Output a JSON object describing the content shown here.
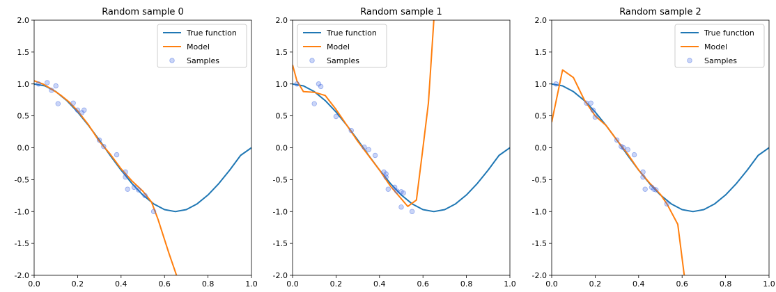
{
  "chart_data": [
    {
      "type": "line",
      "title": "Random sample 0",
      "xlabel": "",
      "ylabel": "",
      "xlim": [
        0.0,
        1.0
      ],
      "ylim": [
        -2.0,
        2.0
      ],
      "xticks": [
        "0.0",
        "0.2",
        "0.4",
        "0.6",
        "0.8",
        "1.0"
      ],
      "yticks": [
        "2.0",
        "1.5",
        "1.0",
        "0.5",
        "0.0",
        "-0.5",
        "-1.0",
        "-1.5",
        "-2.0"
      ],
      "grid": false,
      "legend": "top-right",
      "colors": {
        "true_function": "#1f77b4",
        "model": "#ff7f0e",
        "samples": "#4169e1"
      },
      "series": [
        {
          "name": "True function",
          "kind": "line",
          "x": [
            0,
            0.05,
            0.1,
            0.15,
            0.2,
            0.25,
            0.3,
            0.35,
            0.4,
            0.45,
            0.5,
            0.55,
            0.6,
            0.65,
            0.7,
            0.75,
            0.8,
            0.85,
            0.9,
            0.95,
            1.0
          ],
          "y": [
            1.0,
            0.97,
            0.88,
            0.74,
            0.56,
            0.35,
            0.12,
            -0.12,
            -0.35,
            -0.56,
            -0.74,
            -0.88,
            -0.97,
            -1.0,
            -0.97,
            -0.88,
            -0.74,
            -0.56,
            -0.35,
            -0.12,
            0.0
          ]
        },
        {
          "name": "Model",
          "kind": "line",
          "x": [
            0.0,
            0.04,
            0.08,
            0.12,
            0.16,
            0.2,
            0.25,
            0.3,
            0.35,
            0.4,
            0.45,
            0.5,
            0.54,
            0.57,
            0.62,
            0.655
          ],
          "y": [
            1.05,
            1.0,
            0.92,
            0.83,
            0.72,
            0.58,
            0.36,
            0.1,
            -0.1,
            -0.33,
            -0.52,
            -0.68,
            -0.85,
            -1.12,
            -1.65,
            -2.0
          ]
        },
        {
          "name": "Samples",
          "kind": "scatter",
          "x": [
            0.02,
            0.06,
            0.08,
            0.1,
            0.11,
            0.18,
            0.2,
            0.22,
            0.23,
            0.3,
            0.32,
            0.38,
            0.42,
            0.42,
            0.43,
            0.46,
            0.48,
            0.51,
            0.55
          ],
          "y": [
            1.0,
            1.02,
            0.9,
            0.97,
            0.69,
            0.7,
            0.59,
            0.55,
            0.59,
            0.12,
            0.02,
            -0.11,
            -0.38,
            -0.46,
            -0.65,
            -0.62,
            -0.66,
            -0.75,
            -1.0
          ]
        }
      ]
    },
    {
      "type": "line",
      "title": "Random sample 1",
      "xlabel": "",
      "ylabel": "",
      "xlim": [
        0.0,
        1.0
      ],
      "ylim": [
        -2.0,
        2.0
      ],
      "xticks": [
        "0.0",
        "0.2",
        "0.4",
        "0.6",
        "0.8",
        "1.0"
      ],
      "yticks": [
        "2.0",
        "1.5",
        "1.0",
        "0.5",
        "0.0",
        "-0.5",
        "-1.0",
        "-1.5",
        "-2.0"
      ],
      "grid": false,
      "legend": "top-left",
      "colors": {
        "true_function": "#1f77b4",
        "model": "#ff7f0e",
        "samples": "#4169e1"
      },
      "series": [
        {
          "name": "True function",
          "kind": "line",
          "x": [
            0,
            0.05,
            0.1,
            0.15,
            0.2,
            0.25,
            0.3,
            0.35,
            0.4,
            0.45,
            0.5,
            0.55,
            0.6,
            0.65,
            0.7,
            0.75,
            0.8,
            0.85,
            0.9,
            0.95,
            1.0
          ],
          "y": [
            1.0,
            0.97,
            0.88,
            0.74,
            0.56,
            0.35,
            0.12,
            -0.12,
            -0.35,
            -0.56,
            -0.74,
            -0.88,
            -0.97,
            -1.0,
            -0.97,
            -0.88,
            -0.74,
            -0.56,
            -0.35,
            -0.12,
            0.0
          ]
        },
        {
          "name": "Model",
          "kind": "line",
          "x": [
            0.0,
            0.02,
            0.05,
            0.1,
            0.15,
            0.2,
            0.3,
            0.4,
            0.45,
            0.5,
            0.53,
            0.57,
            0.6,
            0.625,
            0.65
          ],
          "y": [
            1.3,
            1.05,
            0.88,
            0.87,
            0.82,
            0.6,
            0.1,
            -0.35,
            -0.6,
            -0.8,
            -0.92,
            -0.82,
            0.0,
            0.7,
            2.0
          ]
        },
        {
          "name": "Samples",
          "kind": "scatter",
          "x": [
            0.02,
            0.1,
            0.12,
            0.13,
            0.2,
            0.27,
            0.33,
            0.35,
            0.38,
            0.42,
            0.43,
            0.43,
            0.44,
            0.47,
            0.48,
            0.5,
            0.51,
            0.5,
            0.55
          ],
          "y": [
            1.0,
            0.69,
            1.0,
            0.96,
            0.49,
            0.27,
            0.01,
            -0.03,
            -0.12,
            -0.38,
            -0.46,
            -0.41,
            -0.65,
            -0.62,
            -0.68,
            -0.69,
            -0.71,
            -0.93,
            -1.0
          ]
        }
      ]
    },
    {
      "type": "line",
      "title": "Random sample 2",
      "xlabel": "",
      "ylabel": "",
      "xlim": [
        0.0,
        1.0
      ],
      "ylim": [
        -2.0,
        2.0
      ],
      "xticks": [
        "0.0",
        "0.2",
        "0.4",
        "0.6",
        "0.8",
        "1.0"
      ],
      "yticks": [
        "2.0",
        "1.5",
        "1.0",
        "0.5",
        "0.0",
        "-0.5",
        "-1.0",
        "-1.5",
        "-2.0"
      ],
      "grid": false,
      "legend": "top-right",
      "colors": {
        "true_function": "#1f77b4",
        "model": "#ff7f0e",
        "samples": "#4169e1"
      },
      "series": [
        {
          "name": "True function",
          "kind": "line",
          "x": [
            0,
            0.05,
            0.1,
            0.15,
            0.2,
            0.25,
            0.3,
            0.35,
            0.4,
            0.45,
            0.5,
            0.55,
            0.6,
            0.65,
            0.7,
            0.75,
            0.8,
            0.85,
            0.9,
            0.95,
            1.0
          ],
          "y": [
            1.0,
            0.97,
            0.88,
            0.74,
            0.56,
            0.35,
            0.12,
            -0.12,
            -0.35,
            -0.56,
            -0.74,
            -0.88,
            -0.97,
            -1.0,
            -0.97,
            -0.88,
            -0.74,
            -0.56,
            -0.35,
            -0.12,
            0.0
          ]
        },
        {
          "name": "Model",
          "kind": "line",
          "x": [
            0.0,
            0.05,
            0.1,
            0.15,
            0.2,
            0.25,
            0.3,
            0.35,
            0.4,
            0.45,
            0.5,
            0.53,
            0.58,
            0.61
          ],
          "y": [
            0.4,
            1.22,
            1.1,
            0.75,
            0.5,
            0.35,
            0.12,
            -0.1,
            -0.35,
            -0.55,
            -0.73,
            -0.88,
            -1.2,
            -2.0
          ]
        },
        {
          "name": "Samples",
          "kind": "scatter",
          "x": [
            0.02,
            0.16,
            0.18,
            0.19,
            0.2,
            0.3,
            0.32,
            0.33,
            0.35,
            0.38,
            0.42,
            0.42,
            0.43,
            0.46,
            0.47,
            0.48,
            0.53
          ],
          "y": [
            1.0,
            0.7,
            0.7,
            0.59,
            0.48,
            0.12,
            0.02,
            0.0,
            -0.03,
            -0.11,
            -0.38,
            -0.46,
            -0.65,
            -0.62,
            -0.65,
            -0.66,
            -0.88
          ]
        }
      ]
    }
  ]
}
